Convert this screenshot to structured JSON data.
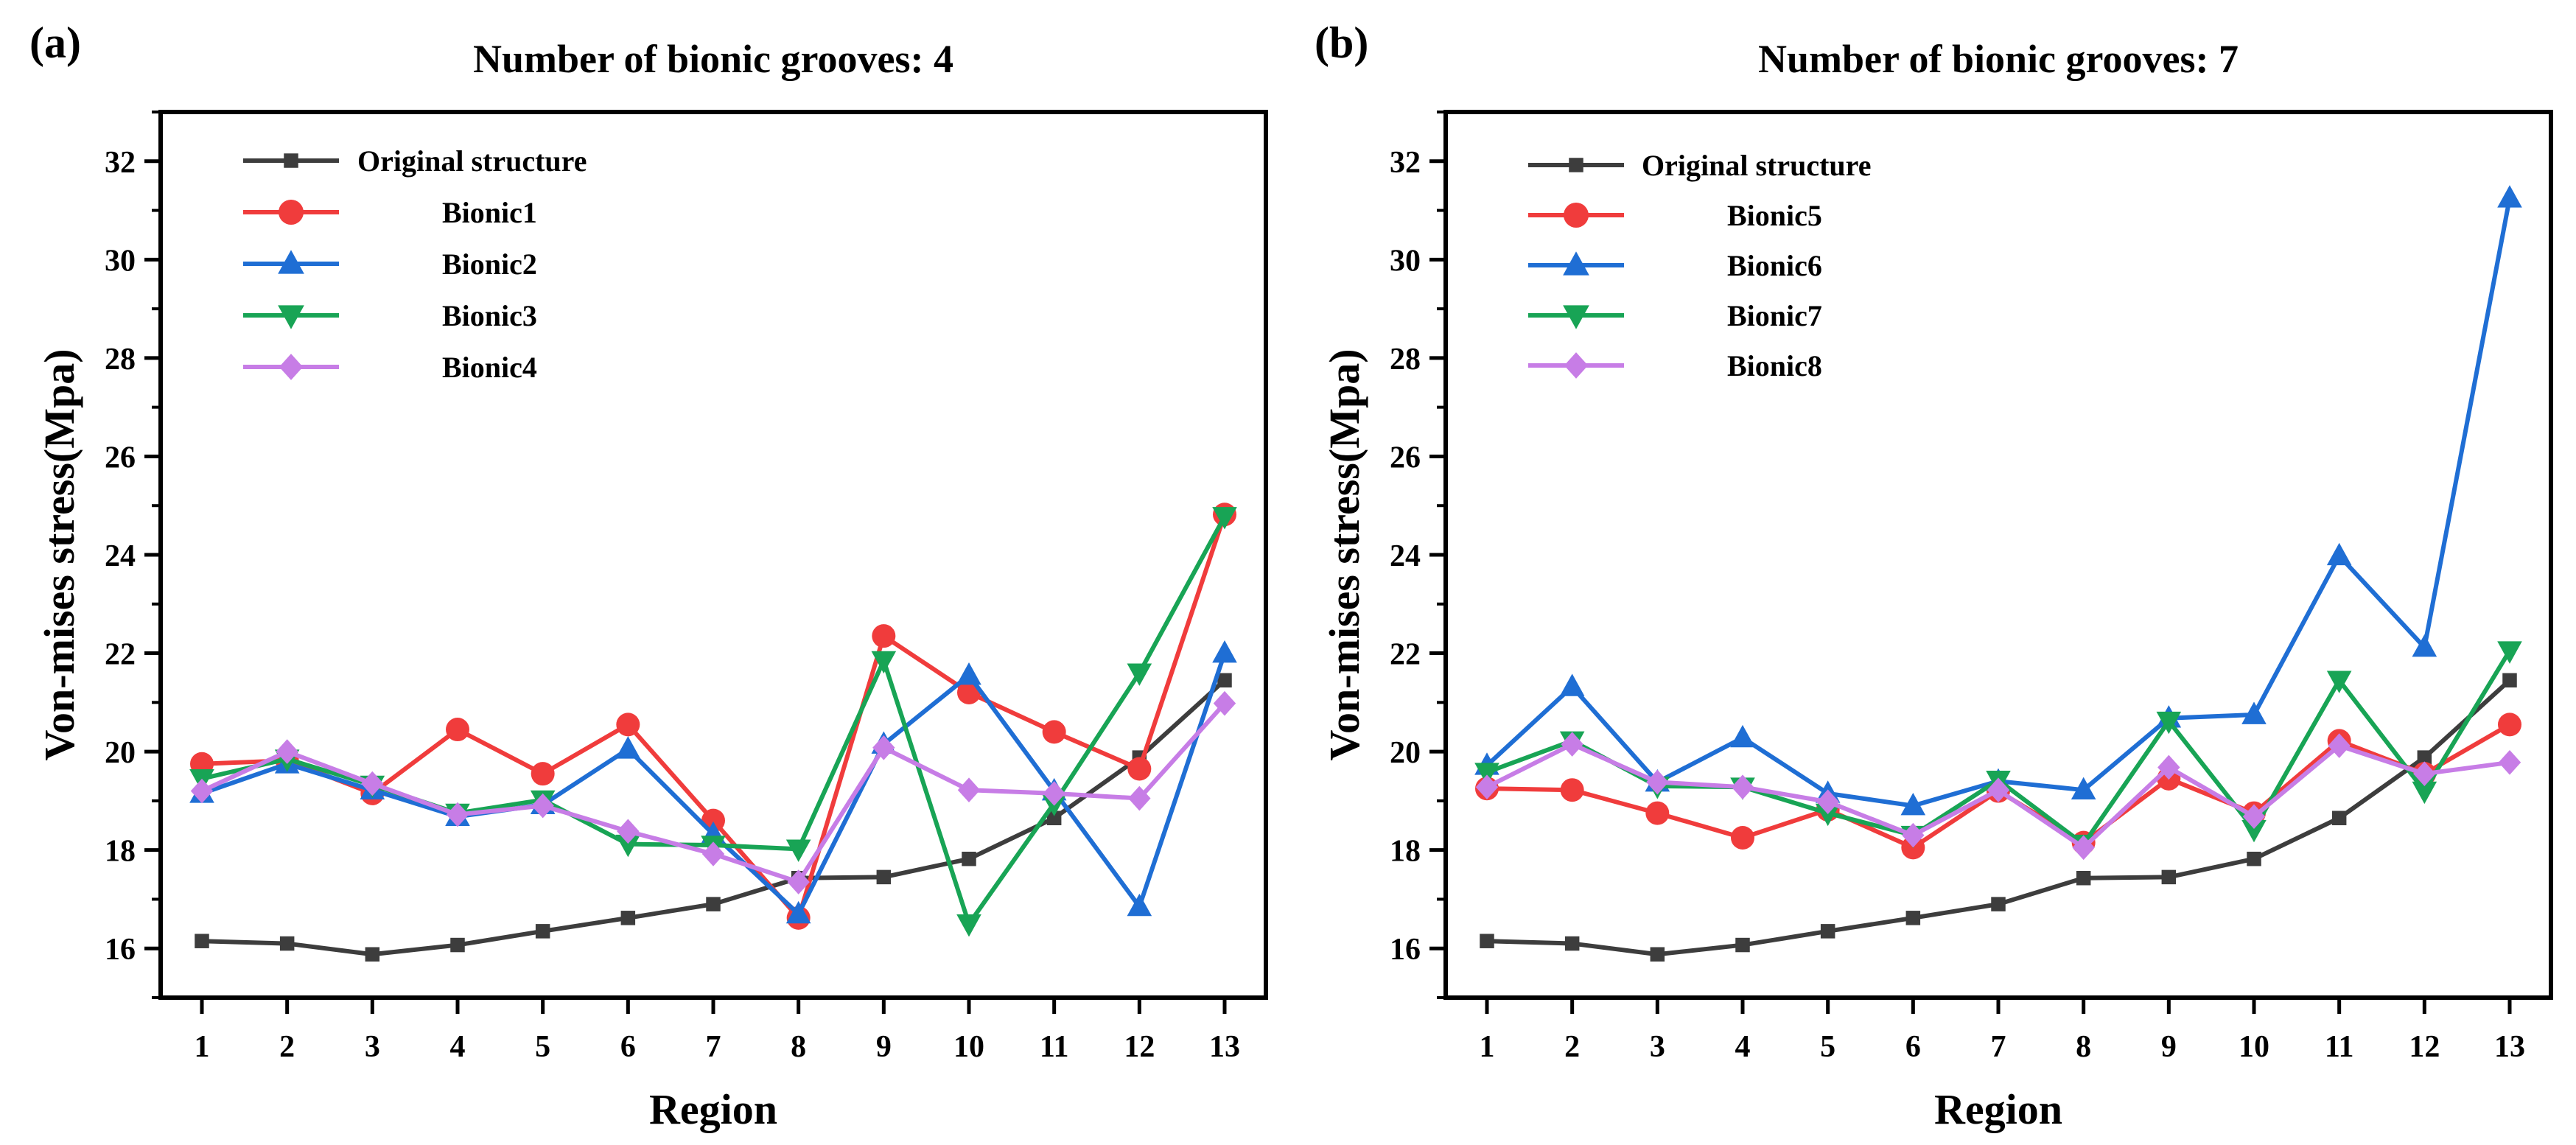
{
  "chart_data": [
    {
      "type": "line",
      "panel": "(a)",
      "title": "Number of bionic grooves: 4",
      "xlabel": "Region",
      "ylabel": "Von-mises stress(Mpa)",
      "categories": [
        "1",
        "2",
        "3",
        "4",
        "5",
        "6",
        "7",
        "8",
        "9",
        "10",
        "11",
        "12",
        "13"
      ],
      "ylim": [
        15,
        33
      ],
      "yticks": [
        16,
        18,
        20,
        22,
        24,
        26,
        28,
        30,
        32
      ],
      "legend_position": "top-left",
      "series": [
        {
          "name": "Original structure",
          "color": "#3d3d3d",
          "marker": "square",
          "values": [
            16.15,
            16.1,
            15.88,
            16.07,
            16.35,
            16.62,
            16.9,
            17.43,
            17.45,
            17.82,
            18.65,
            19.88,
            21.45
          ]
        },
        {
          "name": "Bionic1",
          "color": "#f03c3c",
          "marker": "circle",
          "values": [
            19.75,
            19.82,
            19.15,
            20.45,
            19.55,
            20.55,
            18.6,
            16.62,
            22.35,
            21.2,
            20.4,
            19.65,
            24.82
          ]
        },
        {
          "name": "Bionic2",
          "color": "#1f6ed4",
          "marker": "triangle-up",
          "values": [
            19.15,
            19.75,
            19.22,
            18.68,
            18.92,
            20.05,
            18.32,
            16.7,
            20.15,
            21.55,
            19.2,
            16.85,
            22.0
          ]
        },
        {
          "name": "Bionic3",
          "color": "#18a455",
          "marker": "triangle-down",
          "values": [
            19.45,
            19.85,
            19.32,
            18.75,
            19.02,
            18.12,
            18.1,
            18.02,
            21.85,
            16.5,
            18.95,
            21.6,
            24.78
          ]
        },
        {
          "name": "Bionic4",
          "color": "#c77de6",
          "marker": "diamond",
          "values": [
            19.2,
            20.0,
            19.35,
            18.72,
            18.9,
            18.38,
            17.92,
            17.35,
            20.08,
            19.22,
            19.15,
            19.05,
            20.98
          ]
        }
      ]
    },
    {
      "type": "line",
      "panel": "(b)",
      "title": "Number of bionic grooves: 7",
      "xlabel": "Region",
      "ylabel": "Von-mises stress(Mpa)",
      "categories": [
        "1",
        "2",
        "3",
        "4",
        "5",
        "6",
        "7",
        "8",
        "9",
        "10",
        "11",
        "12",
        "13"
      ],
      "ylim": [
        15,
        33
      ],
      "yticks": [
        16,
        18,
        20,
        22,
        24,
        26,
        28,
        30,
        32
      ],
      "legend_position": "top-left",
      "series": [
        {
          "name": "Original structure",
          "color": "#3d3d3d",
          "marker": "square",
          "values": [
            16.15,
            16.1,
            15.88,
            16.07,
            16.35,
            16.62,
            16.9,
            17.43,
            17.45,
            17.82,
            18.65,
            19.88,
            21.45
          ]
        },
        {
          "name": "Bionic5",
          "color": "#f03c3c",
          "marker": "circle",
          "values": [
            19.25,
            19.22,
            18.75,
            18.25,
            18.82,
            18.05,
            19.2,
            18.15,
            19.45,
            18.75,
            20.22,
            19.55,
            20.55
          ]
        },
        {
          "name": "Bionic6",
          "color": "#1f6ed4",
          "marker": "triangle-up",
          "values": [
            19.72,
            21.32,
            19.38,
            20.28,
            19.15,
            18.9,
            19.4,
            19.22,
            20.68,
            20.75,
            23.98,
            22.12,
            31.25
          ]
        },
        {
          "name": "Bionic7",
          "color": "#18a455",
          "marker": "triangle-down",
          "values": [
            19.58,
            20.22,
            19.3,
            19.28,
            18.75,
            18.3,
            19.42,
            18.12,
            20.62,
            18.42,
            21.45,
            19.2,
            22.05
          ]
        },
        {
          "name": "Bionic8",
          "color": "#c77de6",
          "marker": "diamond",
          "values": [
            19.28,
            20.15,
            19.38,
            19.28,
            18.98,
            18.3,
            19.22,
            18.05,
            19.68,
            18.68,
            20.12,
            19.55,
            19.78
          ]
        }
      ]
    }
  ]
}
